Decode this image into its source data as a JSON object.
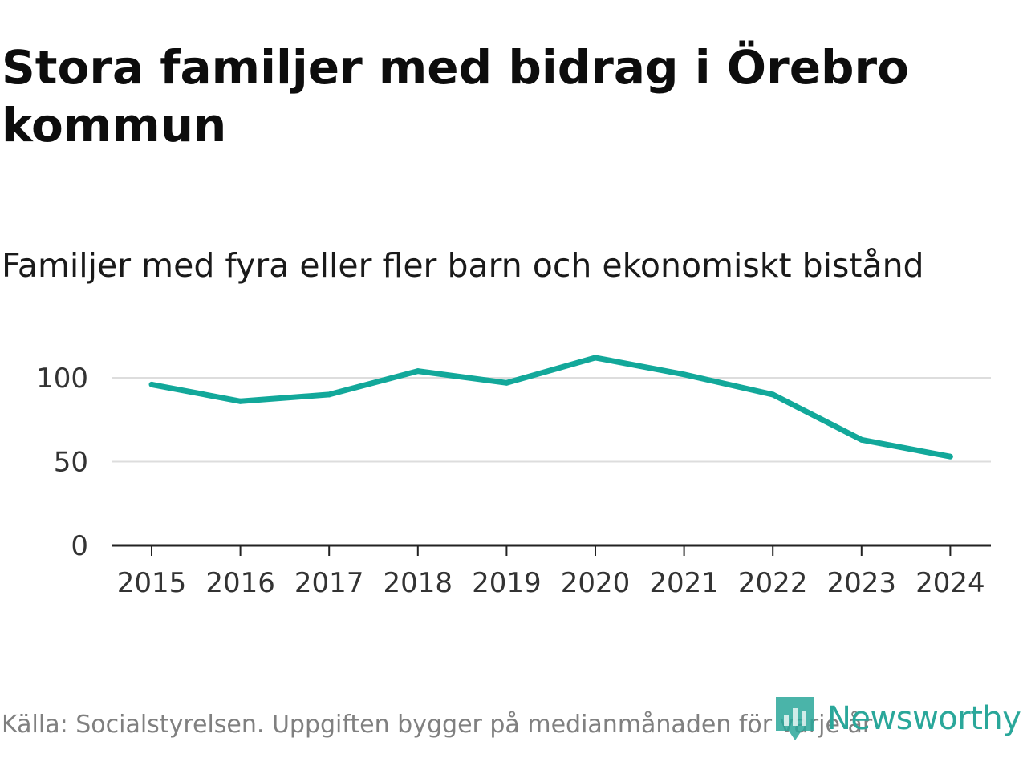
{
  "header": {
    "title": "Stora familjer med bidrag i Örebro kommun",
    "subtitle": "Familjer med fyra eller fler barn och ekonomiskt bistånd"
  },
  "footer": {
    "source": "Källa: Socialstyrelsen. Uppgiften bygger på medianmånaden för varje år",
    "brand": "Newsworthy",
    "brand_icon": "newsworthy-logo-icon"
  },
  "colors": {
    "line": "#12a89a",
    "grid": "#dddddd",
    "axis": "#222222",
    "brand": "#2aa79a"
  },
  "chart_data": {
    "type": "line",
    "title": "Familjer med fyra eller fler barn och ekonomiskt bistånd",
    "xlabel": "",
    "ylabel": "",
    "x": [
      "2015",
      "2016",
      "2017",
      "2018",
      "2019",
      "2020",
      "2021",
      "2022",
      "2023",
      "2024"
    ],
    "series": [
      {
        "name": "Familjer",
        "values": [
          96,
          86,
          90,
          104,
          97,
          112,
          102,
          90,
          63,
          53
        ]
      }
    ],
    "ylim": [
      0,
      120
    ],
    "yticks": [
      0,
      50,
      100
    ],
    "grid": true,
    "legend": "none"
  }
}
